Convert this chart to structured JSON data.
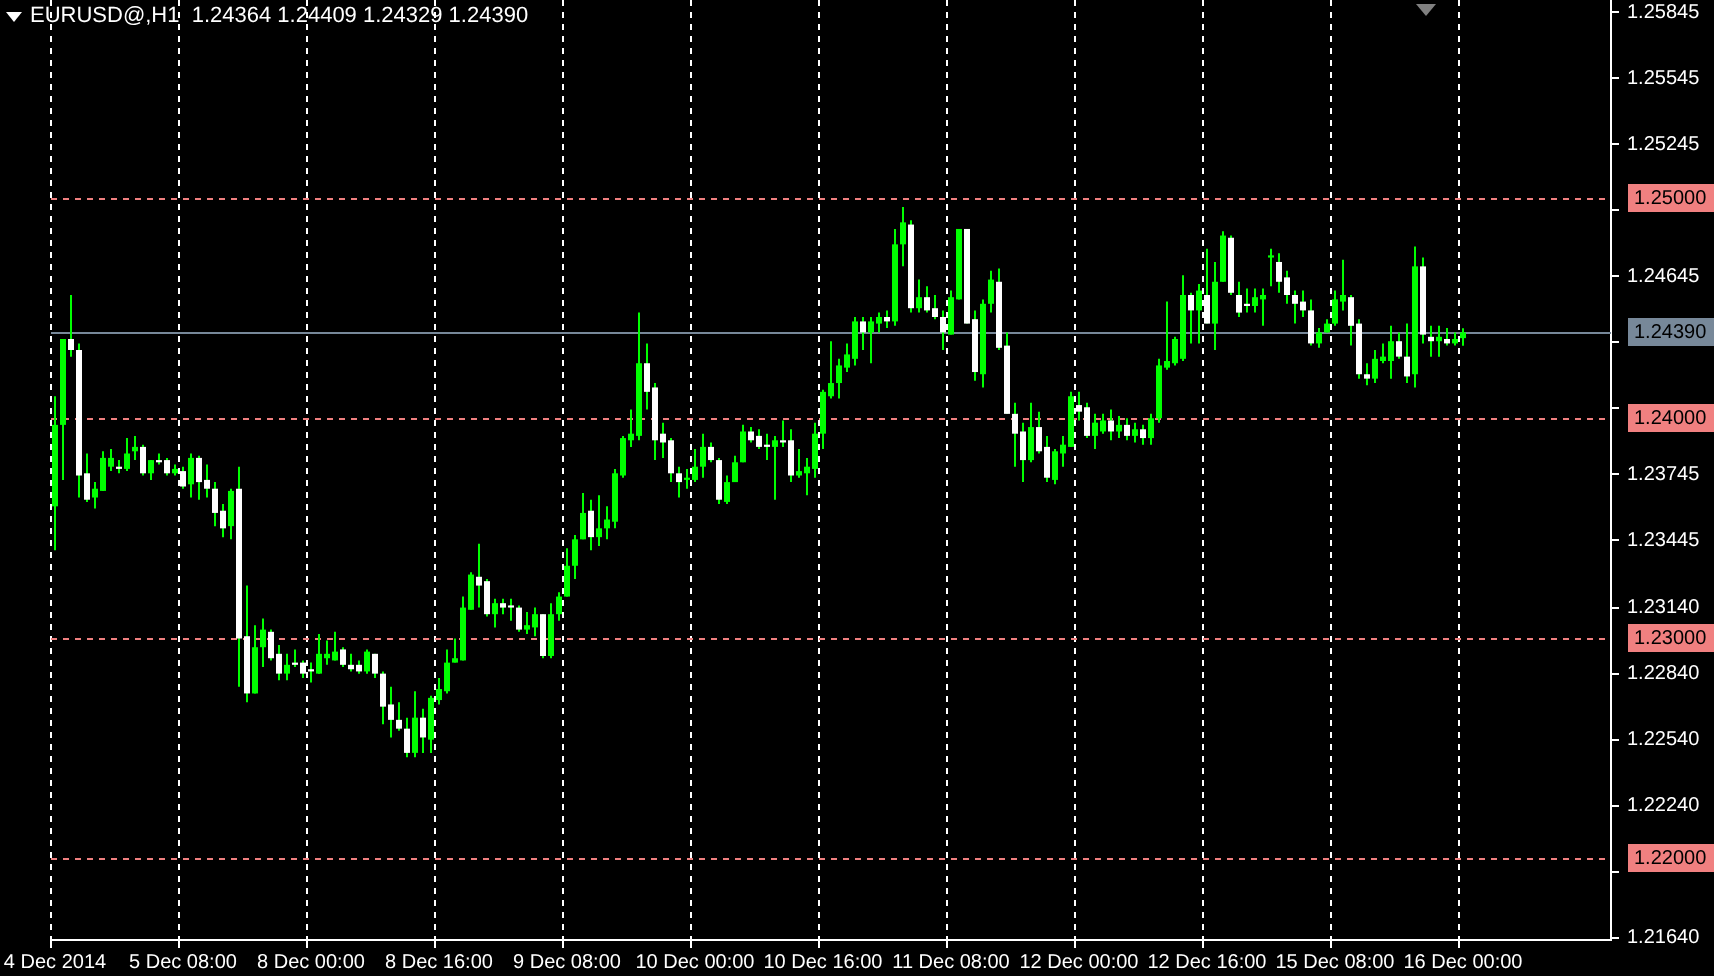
{
  "chart_data": {
    "type": "candlestick",
    "title": "EURUSD@,H1  1.24364 1.24409 1.24329 1.24390",
    "color": "#00ff00",
    "categories": [
      "4 Dec 2014",
      null,
      null,
      null,
      null,
      null,
      null,
      null,
      null,
      null,
      null,
      null,
      null,
      null,
      null,
      null,
      "5 Dec 08:00",
      null,
      null,
      null,
      null,
      null,
      null,
      null,
      null,
      null,
      null,
      null,
      null,
      null,
      null,
      null,
      "8 Dec 00:00",
      null,
      null,
      null,
      null,
      null,
      null,
      null,
      null,
      null,
      null,
      null,
      null,
      null,
      null,
      null,
      "8 Dec 16:00",
      null,
      null,
      null,
      null,
      null,
      null,
      null,
      null,
      null,
      null,
      null,
      null,
      null,
      null,
      null,
      "9 Dec 08:00",
      null,
      null,
      null,
      null,
      null,
      null,
      null,
      null,
      null,
      null,
      null,
      null,
      null,
      null,
      null,
      "10 Dec 00:00",
      null,
      null,
      null,
      null,
      null,
      null,
      null,
      null,
      null,
      null,
      null,
      null,
      null,
      null,
      null,
      "10 Dec 16:00",
      null,
      null,
      null,
      null,
      null,
      null,
      null,
      null,
      null,
      null,
      null,
      null,
      null,
      null,
      null,
      "11 Dec 08:00",
      null,
      null,
      null,
      null,
      null,
      null,
      null,
      null,
      null,
      null,
      null,
      null,
      null,
      null,
      null,
      "12 Dec 00:00",
      null,
      null,
      null,
      null,
      null,
      null,
      null,
      null,
      null,
      null,
      null,
      null,
      null,
      null,
      null,
      "12 Dec 16:00",
      null,
      null,
      null,
      null,
      null,
      null,
      null,
      null,
      null,
      null,
      null,
      null,
      null,
      null,
      null,
      "15 Dec 08:00",
      null,
      null,
      null,
      null,
      null,
      null,
      null,
      null,
      null,
      null,
      null,
      null,
      null,
      null,
      null,
      "16 Dec 00:00",
      null,
      null,
      null,
      null,
      null,
      null,
      null,
      null,
      null,
      null,
      null,
      null,
      null,
      null,
      null,
      null,
      null,
      null
    ],
    "ohlc": [
      [
        1.236,
        1.241,
        1.234,
        1.2397
      ],
      [
        1.2397,
        1.2436,
        1.2372,
        1.2436
      ],
      [
        1.2436,
        1.2456,
        1.2428,
        1.2431
      ],
      [
        1.2431,
        1.2434,
        1.2364,
        1.2374
      ],
      [
        1.2375,
        1.2384,
        1.2362,
        1.2363
      ],
      [
        1.2364,
        1.2371,
        1.2359,
        1.2368
      ],
      [
        1.2367,
        1.2385,
        1.2367,
        1.2382
      ],
      [
        1.2378,
        1.2386,
        1.2376,
        1.2382
      ],
      [
        1.2378,
        1.2381,
        1.2375,
        1.2377
      ],
      [
        1.2377,
        1.2391,
        1.2376,
        1.2384
      ],
      [
        1.2385,
        1.2392,
        1.2381,
        1.2387
      ],
      [
        1.2387,
        1.2388,
        1.2374,
        1.2375
      ],
      [
        1.2375,
        1.2381,
        1.2372,
        1.2381
      ],
      [
        1.2381,
        1.2384,
        1.2379,
        1.238
      ],
      [
        1.2381,
        1.2382,
        1.2374,
        1.2375
      ],
      [
        1.2375,
        1.2379,
        1.2374,
        1.2377
      ],
      [
        1.2376,
        1.2378,
        1.2368,
        1.2369
      ],
      [
        1.237,
        1.2384,
        1.2364,
        1.2382
      ],
      [
        1.2382,
        1.2383,
        1.2363,
        1.2371
      ],
      [
        1.2372,
        1.2379,
        1.2364,
        1.2368
      ],
      [
        1.2368,
        1.2371,
        1.2351,
        1.2357
      ],
      [
        1.2358,
        1.2361,
        1.2346,
        1.235
      ],
      [
        1.2351,
        1.2368,
        1.2345,
        1.2367
      ],
      [
        1.2368,
        1.2378,
        1.2278,
        1.23
      ],
      [
        1.2301,
        1.2324,
        1.2271,
        1.2275
      ],
      [
        1.2275,
        1.2306,
        1.2275,
        1.2296
      ],
      [
        1.2296,
        1.2309,
        1.2287,
        1.2304
      ],
      [
        1.2303,
        1.2304,
        1.229,
        1.2291
      ],
      [
        1.2293,
        1.2297,
        1.2281,
        1.2284
      ],
      [
        1.2284,
        1.2293,
        1.2281,
        1.2288
      ],
      [
        1.2289,
        1.2295,
        1.2287,
        1.2288
      ],
      [
        1.2289,
        1.229,
        1.2282,
        1.2284
      ],
      [
        1.2286,
        1.2289,
        1.228,
        1.2285
      ],
      [
        1.2284,
        1.2302,
        1.2284,
        1.2293
      ],
      [
        1.2291,
        1.2299,
        1.2288,
        1.2293
      ],
      [
        1.229,
        1.2303,
        1.229,
        1.2294
      ],
      [
        1.2295,
        1.2296,
        1.2287,
        1.2288
      ],
      [
        1.2288,
        1.2293,
        1.2285,
        1.2286
      ],
      [
        1.2288,
        1.229,
        1.2284,
        1.2285
      ],
      [
        1.2285,
        1.2295,
        1.2284,
        1.2294
      ],
      [
        1.2293,
        1.2293,
        1.2282,
        1.2284
      ],
      [
        1.2284,
        1.2285,
        1.2261,
        1.2269
      ],
      [
        1.227,
        1.2278,
        1.2255,
        1.2263
      ],
      [
        1.2263,
        1.2271,
        1.2258,
        1.2259
      ],
      [
        1.2259,
        1.2264,
        1.2246,
        1.2248
      ],
      [
        1.2248,
        1.2276,
        1.2246,
        1.2264
      ],
      [
        1.2264,
        1.2268,
        1.2248,
        1.2255
      ],
      [
        1.2254,
        1.2274,
        1.2248,
        1.2273
      ],
      [
        1.2272,
        1.2282,
        1.227,
        1.2277
      ],
      [
        1.2276,
        1.2295,
        1.2275,
        1.2289
      ],
      [
        1.2289,
        1.23,
        1.2289,
        1.2291
      ],
      [
        1.229,
        1.2319,
        1.229,
        1.2314
      ],
      [
        1.2313,
        1.233,
        1.2313,
        1.2329
      ],
      [
        1.2328,
        1.2343,
        1.2314,
        1.2324
      ],
      [
        1.2326,
        1.2327,
        1.231,
        1.2311
      ],
      [
        1.2311,
        1.2318,
        1.2305,
        1.2316
      ],
      [
        1.2316,
        1.2318,
        1.2311,
        1.2314
      ],
      [
        1.2315,
        1.2318,
        1.2308,
        1.2314
      ],
      [
        1.2314,
        1.2315,
        1.2303,
        1.2304
      ],
      [
        1.2304,
        1.2312,
        1.2302,
        1.2306
      ],
      [
        1.2305,
        1.2314,
        1.2301,
        1.2311
      ],
      [
        1.2311,
        1.2311,
        1.2291,
        1.2292
      ],
      [
        1.2292,
        1.2316,
        1.2291,
        1.2311
      ],
      [
        1.2311,
        1.2321,
        1.2308,
        1.2319
      ],
      [
        1.2319,
        1.2341,
        1.2319,
        1.2333
      ],
      [
        1.2333,
        1.2347,
        1.2327,
        1.2345
      ],
      [
        1.2345,
        1.2366,
        1.2345,
        1.2357
      ],
      [
        1.2358,
        1.2363,
        1.234,
        1.2346
      ],
      [
        1.2346,
        1.2365,
        1.2342,
        1.235
      ],
      [
        1.235,
        1.236,
        1.2345,
        1.2354
      ],
      [
        1.2353,
        1.2377,
        1.235,
        1.2375
      ],
      [
        1.2374,
        1.2392,
        1.2373,
        1.2391
      ],
      [
        1.239,
        1.2404,
        1.2387,
        1.2393
      ],
      [
        1.2392,
        1.2448,
        1.239,
        1.2425
      ],
      [
        1.2425,
        1.2434,
        1.2404,
        1.2412
      ],
      [
        1.2414,
        1.2416,
        1.2381,
        1.239
      ],
      [
        1.2393,
        1.2398,
        1.2382,
        1.2389
      ],
      [
        1.239,
        1.2391,
        1.2371,
        1.2375
      ],
      [
        1.2375,
        1.2378,
        1.2364,
        1.2371
      ],
      [
        1.2372,
        1.2377,
        1.2368,
        1.2373
      ],
      [
        1.2372,
        1.2386,
        1.2371,
        1.2378
      ],
      [
        1.2378,
        1.2393,
        1.2373,
        1.2387
      ],
      [
        1.2387,
        1.2389,
        1.238,
        1.2381
      ],
      [
        1.2381,
        1.2382,
        1.2361,
        1.2363
      ],
      [
        1.2362,
        1.2374,
        1.2361,
        1.2371
      ],
      [
        1.2371,
        1.2383,
        1.2371,
        1.238
      ],
      [
        1.238,
        1.2397,
        1.238,
        1.2394
      ],
      [
        1.2394,
        1.2396,
        1.2389,
        1.239
      ],
      [
        1.2392,
        1.2395,
        1.2386,
        1.2387
      ],
      [
        1.2388,
        1.2393,
        1.2381,
        1.2387
      ],
      [
        1.2387,
        1.2392,
        1.2363,
        1.239
      ],
      [
        1.239,
        1.2399,
        1.2387,
        1.2389
      ],
      [
        1.239,
        1.2395,
        1.2371,
        1.2374
      ],
      [
        1.2374,
        1.2386,
        1.2373,
        1.2376
      ],
      [
        1.2375,
        1.2382,
        1.2365,
        1.2378
      ],
      [
        1.2377,
        1.2398,
        1.2373,
        1.2393
      ],
      [
        1.2393,
        1.2413,
        1.2386,
        1.2412
      ],
      [
        1.241,
        1.2435,
        1.2409,
        1.2416
      ],
      [
        1.2416,
        1.2427,
        1.2409,
        1.2424
      ],
      [
        1.2423,
        1.2434,
        1.2421,
        1.2429
      ],
      [
        1.2427,
        1.2446,
        1.2424,
        1.2444
      ],
      [
        1.2444,
        1.2446,
        1.2431,
        1.2439
      ],
      [
        1.2439,
        1.2446,
        1.2425,
        1.2444
      ],
      [
        1.2443,
        1.2448,
        1.2439,
        1.2446
      ],
      [
        1.2446,
        1.2449,
        1.2441,
        1.2444
      ],
      [
        1.2444,
        1.2486,
        1.2442,
        1.2479
      ],
      [
        1.2479,
        1.2496,
        1.2469,
        1.2489
      ],
      [
        1.2488,
        1.249,
        1.2448,
        1.245
      ],
      [
        1.245,
        1.2463,
        1.2448,
        1.2455
      ],
      [
        1.2455,
        1.246,
        1.2448,
        1.2449
      ],
      [
        1.245,
        1.2456,
        1.2445,
        1.2446
      ],
      [
        1.2446,
        1.2449,
        1.2431,
        1.2439
      ],
      [
        1.2438,
        1.2458,
        1.2438,
        1.2455
      ],
      [
        1.2454,
        1.2486,
        1.2454,
        1.2486
      ],
      [
        1.2486,
        1.2486,
        1.2443,
        1.2443
      ],
      [
        1.2445,
        1.2449,
        1.2417,
        1.2421
      ],
      [
        1.242,
        1.2454,
        1.2414,
        1.2452
      ],
      [
        1.2452,
        1.2467,
        1.2448,
        1.2463
      ],
      [
        1.2462,
        1.2468,
        1.2431,
        1.2432
      ],
      [
        1.2433,
        1.2439,
        1.2402,
        1.2402
      ],
      [
        1.2402,
        1.2407,
        1.2378,
        1.2393
      ],
      [
        1.2394,
        1.2398,
        1.2371,
        1.2381
      ],
      [
        1.2381,
        1.2407,
        1.238,
        1.2396
      ],
      [
        1.2396,
        1.2403,
        1.2384,
        1.2385
      ],
      [
        1.2387,
        1.2392,
        1.2371,
        1.2373
      ],
      [
        1.2372,
        1.2386,
        1.237,
        1.2385
      ],
      [
        1.2384,
        1.2392,
        1.2378,
        1.2388
      ],
      [
        1.2387,
        1.2412,
        1.2387,
        1.241
      ],
      [
        1.2406,
        1.2412,
        1.2399,
        1.2403
      ],
      [
        1.2405,
        1.2407,
        1.2391,
        1.2392
      ],
      [
        1.2392,
        1.2402,
        1.2386,
        1.2398
      ],
      [
        1.2394,
        1.2402,
        1.2393,
        1.2399
      ],
      [
        1.2399,
        1.2404,
        1.239,
        1.2394
      ],
      [
        1.2394,
        1.2401,
        1.2391,
        1.2397
      ],
      [
        1.2397,
        1.24,
        1.239,
        1.2392
      ],
      [
        1.2392,
        1.2398,
        1.2389,
        1.2395
      ],
      [
        1.2395,
        1.2397,
        1.2388,
        1.2391
      ],
      [
        1.2391,
        1.2402,
        1.2388,
        1.24
      ],
      [
        1.24,
        1.2427,
        1.2398,
        1.2424
      ],
      [
        1.2423,
        1.2453,
        1.2422,
        1.2426
      ],
      [
        1.2425,
        1.2437,
        1.2424,
        1.2436
      ],
      [
        1.2427,
        1.2465,
        1.2426,
        1.2456
      ],
      [
        1.2456,
        1.2457,
        1.2434,
        1.2449
      ],
      [
        1.2449,
        1.2461,
        1.2434,
        1.2458
      ],
      [
        1.2456,
        1.2477,
        1.2443,
        1.2443
      ],
      [
        1.2443,
        1.2471,
        1.2431,
        1.2462
      ],
      [
        1.2462,
        1.2485,
        1.2462,
        1.2483
      ],
      [
        1.2482,
        1.2483,
        1.2456,
        1.2457
      ],
      [
        1.2456,
        1.2462,
        1.2446,
        1.2448
      ],
      [
        1.2452,
        1.2459,
        1.2448,
        1.2451
      ],
      [
        1.2451,
        1.2459,
        1.2448,
        1.2455
      ],
      [
        1.2454,
        1.2459,
        1.2442,
        1.2456
      ],
      [
        1.2473,
        1.2477,
        1.246,
        1.2474
      ],
      [
        1.2471,
        1.2475,
        1.2457,
        1.2462
      ],
      [
        1.2464,
        1.2467,
        1.2452,
        1.2456
      ],
      [
        1.2456,
        1.2458,
        1.2443,
        1.2452
      ],
      [
        1.2453,
        1.2458,
        1.2446,
        1.2449
      ],
      [
        1.2449,
        1.2454,
        1.2433,
        1.2434
      ],
      [
        1.2434,
        1.2441,
        1.2432,
        1.2439
      ],
      [
        1.2439,
        1.2445,
        1.2439,
        1.2443
      ],
      [
        1.2443,
        1.2458,
        1.2442,
        1.2454
      ],
      [
        1.2453,
        1.2472,
        1.2449,
        1.2456
      ],
      [
        1.2455,
        1.2456,
        1.2433,
        1.2442
      ],
      [
        1.2443,
        1.2445,
        1.2418,
        1.242
      ],
      [
        1.242,
        1.2425,
        1.2415,
        1.2418
      ],
      [
        1.2418,
        1.2431,
        1.2416,
        1.2427
      ],
      [
        1.2426,
        1.2434,
        1.2425,
        1.2428
      ],
      [
        1.2426,
        1.2442,
        1.2418,
        1.2435
      ],
      [
        1.2435,
        1.2439,
        1.2427,
        1.2428
      ],
      [
        1.2428,
        1.2443,
        1.2416,
        1.2419
      ],
      [
        1.242,
        1.2478,
        1.2414,
        1.2469
      ],
      [
        1.2469,
        1.2473,
        1.2434,
        1.2438
      ],
      [
        1.2437,
        1.2442,
        1.2428,
        1.2435
      ],
      [
        1.2435,
        1.2442,
        1.2428,
        1.2437
      ],
      [
        1.2436,
        1.2441,
        1.2433,
        1.2434
      ],
      [
        1.2434,
        1.2439,
        1.2433,
        1.2436
      ],
      [
        1.24364,
        1.24409,
        1.24329,
        1.2439
      ],
      null,
      null,
      null,
      null,
      null,
      null,
      null,
      null,
      null,
      null,
      null,
      null,
      null,
      null,
      null,
      null,
      null,
      null
    ],
    "colors": [
      "#00ff00",
      "#00ff00",
      "#ffffff",
      "#ffffff",
      "#ffffff",
      "#00ff00",
      "#00ff00",
      "#00ff00",
      "#ffffff",
      "#00ff00",
      "#00ff00",
      "#ffffff",
      "#00ff00",
      "#ffffff",
      "#ffffff",
      "#00ff00",
      "#ffffff",
      "#00ff00",
      "#ffffff",
      "#ffffff",
      "#ffffff",
      "#ffffff",
      "#00ff00",
      "#ffffff",
      "#ffffff",
      "#00ff00",
      "#00ff00",
      "#ffffff",
      "#ffffff",
      "#00ff00",
      "#ffffff",
      "#ffffff",
      "#ffffff",
      "#00ff00",
      "#00ff00",
      "#00ff00",
      "#ffffff",
      "#ffffff",
      "#ffffff",
      "#00ff00",
      "#ffffff",
      "#ffffff",
      "#ffffff",
      "#ffffff",
      "#ffffff",
      "#00ff00",
      "#ffffff",
      "#00ff00",
      "#00ff00",
      "#00ff00",
      "#00ff00",
      "#00ff00",
      "#00ff00",
      "#ffffff",
      "#ffffff",
      "#00ff00",
      "#ffffff",
      "#ffffff",
      "#ffffff",
      "#00ff00",
      "#00ff00",
      "#ffffff",
      "#00ff00",
      "#00ff00",
      "#00ff00",
      "#00ff00",
      "#00ff00",
      "#ffffff",
      "#00ff00",
      "#00ff00",
      "#00ff00",
      "#00ff00",
      "#00ff00",
      "#00ff00",
      "#ffffff",
      "#ffffff",
      "#ffffff",
      "#ffffff",
      "#ffffff",
      "#00ff00",
      "#00ff00",
      "#00ff00",
      "#ffffff",
      "#ffffff",
      "#00ff00",
      "#00ff00",
      "#00ff00",
      "#ffffff",
      "#ffffff",
      "#ffffff",
      "#00ff00",
      "#ffffff",
      "#ffffff",
      "#00ff00",
      "#00ff00",
      "#00ff00",
      "#00ff00",
      "#00ff00",
      "#00ff00",
      "#00ff00",
      "#00ff00",
      "#ffffff",
      "#00ff00",
      "#00ff00",
      "#ffffff",
      "#00ff00",
      "#00ff00",
      "#ffffff",
      "#00ff00",
      "#ffffff",
      "#ffffff",
      "#ffffff",
      "#00ff00",
      "#00ff00",
      "#ffffff",
      "#ffffff",
      "#00ff00",
      "#00ff00",
      "#ffffff",
      "#ffffff",
      "#ffffff",
      "#ffffff",
      "#00ff00",
      "#ffffff",
      "#ffffff",
      "#00ff00",
      "#00ff00",
      "#00ff00",
      "#ffffff",
      "#ffffff",
      "#00ff00",
      "#00ff00",
      "#ffffff",
      "#00ff00",
      "#ffffff",
      "#00ff00",
      "#ffffff",
      "#00ff00",
      "#00ff00",
      "#00ff00",
      "#00ff00",
      "#00ff00",
      "#ffffff",
      "#00ff00",
      "#ffffff",
      "#00ff00",
      "#00ff00",
      "#ffffff",
      "#ffffff",
      "#ffffff",
      "#00ff00",
      "#00ff00",
      "#00ff00",
      "#ffffff",
      "#ffffff",
      "#ffffff",
      "#ffffff",
      "#ffffff",
      "#00ff00",
      "#00ff00",
      "#00ff00",
      "#00ff00",
      "#ffffff",
      "#ffffff",
      "#ffffff",
      "#00ff00",
      "#00ff00",
      "#00ff00",
      "#ffffff",
      "#ffffff",
      "#00ff00",
      "#ffffff",
      "#ffffff",
      "#00ff00",
      "#ffffff",
      "#00ff00",
      "#00ff00",
      null,
      null,
      null,
      null,
      null,
      null,
      null,
      null,
      null,
      null,
      null,
      null,
      null,
      null,
      null,
      null,
      null,
      null
    ],
    "ylim": [
      1.2163,
      1.259
    ],
    "yticks": [
      {
        "value": 1.2164,
        "label": "1.21640"
      },
      {
        "value": 1.2194,
        "label": null
      },
      {
        "value": 1.2224,
        "label": "1.22240"
      },
      {
        "value": 1.2254,
        "label": "1.22540"
      },
      {
        "value": 1.2284,
        "label": "1.22840"
      },
      {
        "value": 1.2314,
        "label": "1.23140"
      },
      {
        "value": 1.23445,
        "label": "1.23445"
      },
      {
        "value": 1.23745,
        "label": "1.23745"
      },
      {
        "value": 1.24045,
        "label": null
      },
      {
        "value": 1.24345,
        "label": null
      },
      {
        "value": 1.24645,
        "label": "1.24645"
      },
      {
        "value": 1.24945,
        "label": null
      },
      {
        "value": 1.25245,
        "label": "1.25245"
      },
      {
        "value": 1.25545,
        "label": "1.25545"
      },
      {
        "value": 1.25845,
        "label": "1.25845"
      }
    ],
    "grid": "x",
    "ref_lines": [
      {
        "axis": "y",
        "value": 1.25,
        "label": "1.25000",
        "color": "#f08080",
        "line_style": "dashed"
      },
      {
        "axis": "y",
        "value": 1.24,
        "label": "1.24000",
        "color": "#f08080",
        "line_style": "dashed"
      },
      {
        "axis": "y",
        "value": 1.23,
        "label": "1.23000",
        "color": "#f08080",
        "line_style": "dashed"
      },
      {
        "axis": "y",
        "value": 1.22,
        "label": "1.22000",
        "color": "#f08080",
        "line_style": "dashed"
      },
      {
        "axis": "y",
        "value": 1.2439,
        "label": "1.24390",
        "color": "#778899",
        "line_style": "solid"
      }
    ]
  }
}
